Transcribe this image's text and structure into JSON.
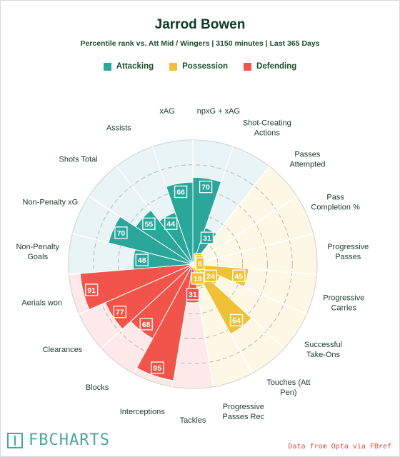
{
  "header": {
    "title": "Jarrod Bowen",
    "subtitle": "Percentile rank vs. Att Mid / Wingers | 3150 minutes | Last 365 Days"
  },
  "legend": [
    {
      "label": "Attacking",
      "color": "#2aa69a"
    },
    {
      "label": "Possession",
      "color": "#f0c135"
    },
    {
      "label": "Defending",
      "color": "#f0544a"
    }
  ],
  "footer": {
    "brand": "FBCHARTS",
    "source": "Data from Opta via FBref"
  },
  "chart_data": {
    "type": "radial-bar",
    "range": [
      0,
      100
    ],
    "grid": true,
    "categories": [
      {
        "name": "Attacking",
        "color": "#2aa69a",
        "background": "#e8f4f5"
      },
      {
        "name": "Possession",
        "color": "#f0c135",
        "background": "#fdf8e6"
      },
      {
        "name": "Defending",
        "color": "#f0544a",
        "background": "#fde9ea"
      }
    ],
    "metrics": [
      {
        "label": "npxG + xAG",
        "value": 70,
        "group": "Attacking"
      },
      {
        "label": "Shot-Creating\nActions",
        "value": 31,
        "group": "Attacking"
      },
      {
        "label": "Passes\nAttempted",
        "value": 3,
        "group": "Possession"
      },
      {
        "label": "Pass\nCompletion %",
        "value": 5,
        "group": "Possession"
      },
      {
        "label": "Progressive\nPasses",
        "value": 6,
        "group": "Possession"
      },
      {
        "label": "Progressive\nCarries",
        "value": 45,
        "group": "Possession"
      },
      {
        "label": "Successful\nTake-Ons",
        "value": 24,
        "group": "Possession"
      },
      {
        "label": "Touches (Att\nPen)",
        "value": 64,
        "group": "Possession"
      },
      {
        "label": "Progressive\nPasses Rec",
        "value": 19,
        "group": "Possession"
      },
      {
        "label": "Tackles",
        "value": 31,
        "group": "Defending"
      },
      {
        "label": "Interceptions",
        "value": 95,
        "group": "Defending"
      },
      {
        "label": "Blocks",
        "value": 68,
        "group": "Defending"
      },
      {
        "label": "Clearances",
        "value": 77,
        "group": "Defending"
      },
      {
        "label": "Aerials won",
        "value": 91,
        "group": "Defending"
      },
      {
        "label": "Non-Penalty\nGoals",
        "value": 48,
        "group": "Attacking"
      },
      {
        "label": "Non-Penalty xG",
        "value": 70,
        "group": "Attacking"
      },
      {
        "label": "Shots Total",
        "value": 55,
        "group": "Attacking"
      },
      {
        "label": "Assists",
        "value": 44,
        "group": "Attacking"
      },
      {
        "label": "xAG",
        "value": 66,
        "group": "Attacking"
      }
    ]
  }
}
